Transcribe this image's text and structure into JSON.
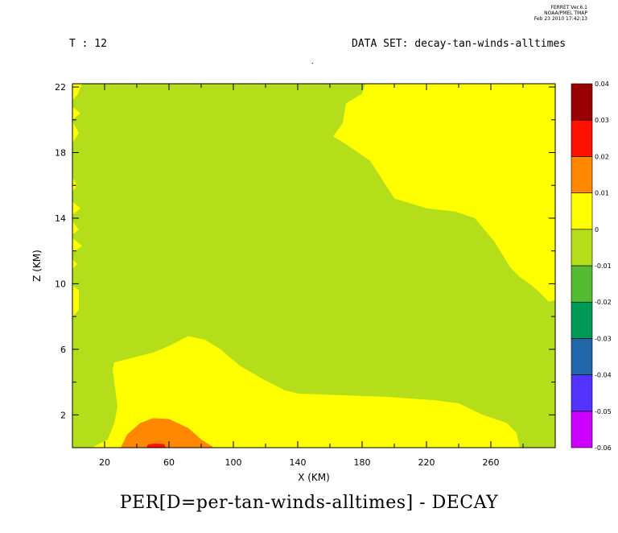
{
  "header": {
    "stamp_line1": "FERRET  Ver.6.1",
    "stamp_line2": "NOAA/PMEL TMAP",
    "stamp_line3": "Feb 23 2010 17:42:13",
    "time_label": "T : 12",
    "dataset_label": "DATA SET: decay-tan-winds-alltimes",
    "dot": "."
  },
  "chart_data": {
    "type": "heatmap",
    "title": "PER[D=per-tan-winds-alltimes] - DECAY",
    "xlabel": "X (KM)",
    "ylabel": "Z (KM)",
    "xlim": [
      0,
      300
    ],
    "ylim": [
      0,
      22.2
    ],
    "xticks": [
      20,
      60,
      100,
      140,
      180,
      220,
      260
    ],
    "yticks": [
      2,
      6,
      10,
      14,
      18,
      22
    ],
    "colorbar": {
      "levels": [
        -0.06,
        -0.05,
        -0.04,
        -0.03,
        -0.02,
        -0.01,
        0,
        0.01,
        0.02,
        0.03,
        0.04
      ],
      "labels": [
        "-0.06",
        "-0.05",
        "-0.04",
        "-0.03",
        "-0.02",
        "-0.01",
        "0",
        "0.01",
        "0.02",
        "0.03",
        "0.04"
      ],
      "colors": [
        "#cc00ff",
        "#5533ff",
        "#2266aa",
        "#009955",
        "#55bb33",
        "#b4dd1a",
        "#ffff00",
        "#ff8800",
        "#ff1100",
        "#990000"
      ]
    },
    "regions": [
      {
        "level": "0 to 0.01",
        "color": "#ffff00",
        "points": [
          [
            180,
            22.2
          ],
          [
            300,
            22.2
          ],
          [
            300,
            9.0
          ],
          [
            296,
            8.9
          ],
          [
            290,
            9.5
          ],
          [
            284,
            10.0
          ],
          [
            278,
            10.4
          ],
          [
            272,
            11.0
          ],
          [
            262,
            12.6
          ],
          [
            250,
            14.0
          ],
          [
            238,
            14.4
          ],
          [
            220,
            14.6
          ],
          [
            200,
            15.2
          ],
          [
            185,
            17.5
          ],
          [
            170,
            18.5
          ],
          [
            162,
            19.0
          ],
          [
            168,
            19.8
          ],
          [
            170,
            21.0
          ],
          [
            180,
            21.6
          ],
          [
            182,
            22.2
          ]
        ]
      },
      {
        "level": "0 to 0.01",
        "color": "#ffff00",
        "points": [
          [
            12,
            0
          ],
          [
            278,
            0
          ],
          [
            276,
            0.9
          ],
          [
            270,
            1.5
          ],
          [
            255,
            2.0
          ],
          [
            240,
            2.7
          ],
          [
            225,
            2.9
          ],
          [
            195,
            3.1
          ],
          [
            165,
            3.2
          ],
          [
            140,
            3.3
          ],
          [
            132,
            3.5
          ],
          [
            118,
            4.2
          ],
          [
            104,
            5.0
          ],
          [
            92,
            6.0
          ],
          [
            82,
            6.6
          ],
          [
            72,
            6.8
          ],
          [
            60,
            6.2
          ],
          [
            50,
            5.8
          ],
          [
            38,
            5.5
          ],
          [
            26,
            5.2
          ],
          [
            25,
            4.8
          ],
          [
            28,
            2.5
          ],
          [
            26,
            1.5
          ],
          [
            22,
            0.5
          ]
        ]
      },
      {
        "level": "0.01 to 0.02",
        "color": "#ff8800",
        "points": [
          [
            30,
            0
          ],
          [
            88,
            0
          ],
          [
            80,
            0.5
          ],
          [
            72,
            1.2
          ],
          [
            60,
            1.75
          ],
          [
            50,
            1.8
          ],
          [
            42,
            1.5
          ],
          [
            34,
            0.8
          ]
        ]
      },
      {
        "level": "0.02 to 0.03",
        "color": "#ff1100",
        "points": [
          [
            46,
            0
          ],
          [
            58,
            0
          ],
          [
            57,
            0.22
          ],
          [
            52,
            0.25
          ],
          [
            47,
            0.2
          ]
        ]
      },
      {
        "level": "0 to 0.01",
        "color": "#ffff00",
        "points": [
          [
            0,
            22.2
          ],
          [
            6,
            22.2
          ],
          [
            3,
            21.5
          ],
          [
            0,
            21.2
          ]
        ]
      },
      {
        "level": "0 to 0.01",
        "color": "#ffff00",
        "points": [
          [
            0,
            20.8
          ],
          [
            5,
            20.4
          ],
          [
            0,
            20.0
          ]
        ]
      },
      {
        "level": "0 to 0.01",
        "color": "#ffff00",
        "points": [
          [
            0,
            19.9
          ],
          [
            4,
            19.2
          ],
          [
            0,
            18.6
          ]
        ]
      },
      {
        "level": "0 to 0.01",
        "color": "#ffff00",
        "points": [
          [
            0,
            16.5
          ],
          [
            3,
            16.0
          ],
          [
            0,
            15.6
          ]
        ]
      },
      {
        "level": "0 to 0.01",
        "color": "#ffff00",
        "points": [
          [
            0,
            15.0
          ],
          [
            5,
            14.6
          ],
          [
            0,
            14.2
          ]
        ]
      },
      {
        "level": "0 to 0.01",
        "color": "#ffff00",
        "points": [
          [
            0,
            13.8
          ],
          [
            4,
            13.3
          ],
          [
            0,
            13.0
          ]
        ]
      },
      {
        "level": "0 to 0.01",
        "color": "#ffff00",
        "points": [
          [
            0,
            12.8
          ],
          [
            6,
            12.3
          ],
          [
            0,
            11.9
          ]
        ]
      },
      {
        "level": "0 to 0.01",
        "color": "#ffff00",
        "points": [
          [
            0,
            11.5
          ],
          [
            3,
            11.2
          ],
          [
            0,
            10.9
          ]
        ]
      },
      {
        "level": "0 to 0.01",
        "color": "#ffff00",
        "points": [
          [
            0,
            9.9
          ],
          [
            4,
            9.6
          ],
          [
            4,
            8.4
          ],
          [
            0,
            8.0
          ]
        ]
      }
    ]
  }
}
